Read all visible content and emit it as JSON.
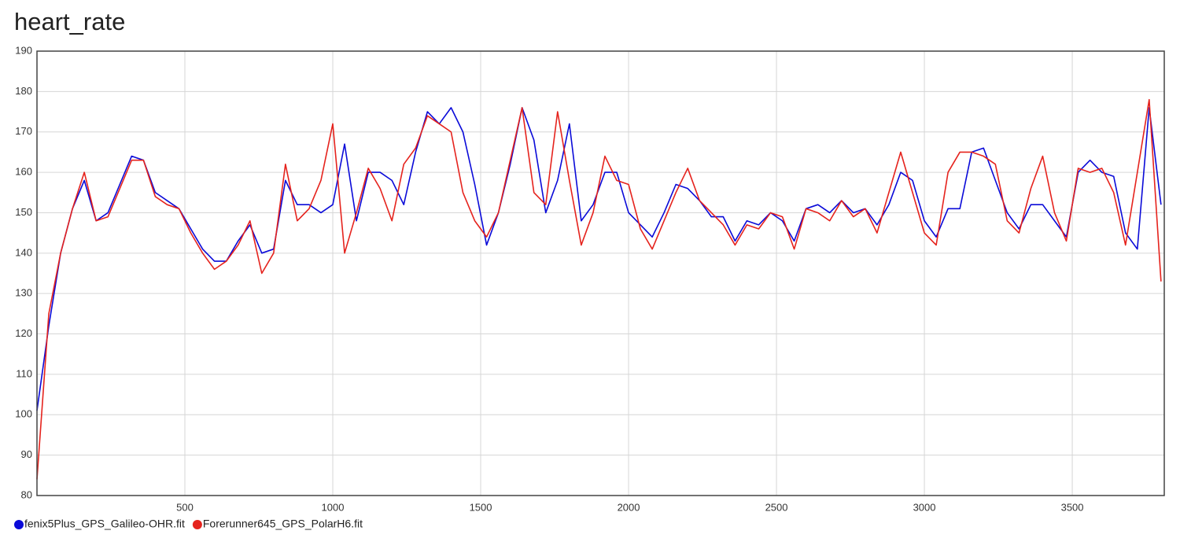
{
  "chart_data": {
    "type": "line",
    "title": "heart_rate",
    "x": [
      0,
      40,
      80,
      120,
      160,
      200,
      240,
      280,
      320,
      360,
      400,
      440,
      480,
      520,
      560,
      600,
      640,
      680,
      720,
      760,
      800,
      840,
      880,
      920,
      960,
      1000,
      1040,
      1080,
      1120,
      1160,
      1200,
      1240,
      1280,
      1320,
      1360,
      1400,
      1440,
      1480,
      1520,
      1560,
      1600,
      1640,
      1680,
      1720,
      1760,
      1800,
      1840,
      1880,
      1920,
      1960,
      2000,
      2040,
      2080,
      2120,
      2160,
      2200,
      2240,
      2280,
      2320,
      2360,
      2400,
      2440,
      2480,
      2520,
      2560,
      2600,
      2640,
      2680,
      2720,
      2760,
      2800,
      2840,
      2880,
      2920,
      2960,
      3000,
      3040,
      3080,
      3120,
      3160,
      3200,
      3240,
      3280,
      3320,
      3360,
      3400,
      3440,
      3480,
      3520,
      3560,
      3600,
      3640,
      3680,
      3720,
      3760,
      3800
    ],
    "series": [
      {
        "name": "fenix5Plus_GPS_Galileo-OHR.fit",
        "color": "#0a0ad8",
        "values": [
          101,
          122,
          140,
          151,
          158,
          148,
          150,
          157,
          164,
          163,
          155,
          153,
          151,
          146,
          141,
          138,
          138,
          143,
          147,
          140,
          141,
          158,
          152,
          152,
          150,
          152,
          167,
          148,
          160,
          160,
          158,
          152,
          165,
          175,
          172,
          176,
          170,
          157,
          142,
          150,
          162,
          176,
          168,
          150,
          158,
          172,
          148,
          152,
          160,
          160,
          150,
          147,
          144,
          150,
          157,
          156,
          153,
          149,
          149,
          143,
          148,
          147,
          150,
          148,
          143,
          151,
          152,
          150,
          153,
          150,
          151,
          147,
          152,
          160,
          158,
          148,
          144,
          151,
          151,
          165,
          166,
          158,
          150,
          146,
          152,
          152,
          148,
          144,
          160,
          163,
          160,
          159,
          145,
          141,
          176,
          152
        ]
      },
      {
        "name": "Forerunner645_GPS_PolarH6.fit",
        "color": "#e5231d",
        "values": [
          84,
          125,
          140,
          151,
          160,
          148,
          149,
          156,
          163,
          163,
          154,
          152,
          151,
          145,
          140,
          136,
          138,
          142,
          148,
          135,
          140,
          162,
          148,
          151,
          158,
          172,
          140,
          150,
          161,
          156,
          148,
          162,
          166,
          174,
          172,
          170,
          155,
          148,
          144,
          150,
          163,
          176,
          155,
          152,
          175,
          158,
          142,
          150,
          164,
          158,
          157,
          146,
          141,
          148,
          155,
          161,
          153,
          150,
          147,
          142,
          147,
          146,
          150,
          149,
          141,
          151,
          150,
          148,
          153,
          149,
          151,
          145,
          155,
          165,
          155,
          145,
          142,
          160,
          165,
          165,
          164,
          162,
          148,
          145,
          156,
          164,
          150,
          143,
          161,
          160,
          161,
          155,
          142,
          160,
          178,
          133
        ]
      }
    ],
    "xlim": [
      0,
      3811
    ],
    "ylim": [
      80,
      190
    ],
    "xticks": [
      500,
      1000,
      1500,
      2000,
      2500,
      3000,
      3500
    ],
    "yticks": [
      80,
      90,
      100,
      110,
      120,
      130,
      140,
      150,
      160,
      170,
      180,
      190
    ],
    "grid": true,
    "legend": "bottom-left"
  }
}
